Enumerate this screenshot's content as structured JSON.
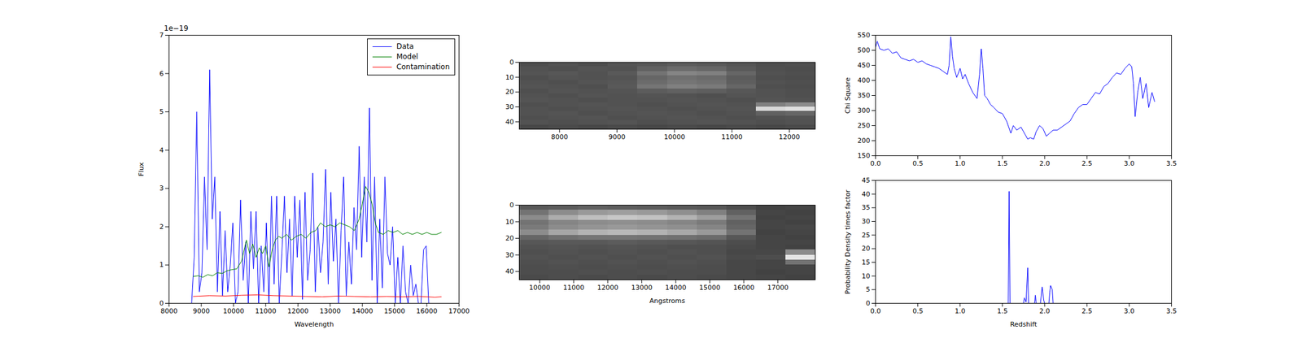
{
  "chart_data": [
    {
      "type": "line",
      "xlabel": "Wavelength",
      "ylabel": "Flux",
      "xlim": [
        8000,
        17000
      ],
      "xticks": [
        8000,
        9000,
        10000,
        11000,
        12000,
        13000,
        14000,
        15000,
        16000,
        17000
      ],
      "ylim": [
        0,
        7
      ],
      "yticks": [
        0,
        1,
        2,
        3,
        4,
        5,
        6,
        7
      ],
      "annotations": [
        {
          "text": "1e−19"
        }
      ],
      "legend": "upper right",
      "series": [
        {
          "name": "Data",
          "color": "#0000ff",
          "x": [
            8700,
            8780,
            8860,
            8940,
            9020,
            9100,
            9180,
            9260,
            9340,
            9420,
            9500,
            9580,
            9660,
            9740,
            9820,
            9900,
            9980,
            10060,
            10140,
            10220,
            10300,
            10380,
            10460,
            10540,
            10620,
            10700,
            10780,
            10860,
            10940,
            11020,
            11100,
            11180,
            11260,
            11340,
            11420,
            11500,
            11580,
            11660,
            11740,
            11820,
            11900,
            11980,
            12060,
            12140,
            12220,
            12300,
            12380,
            12460,
            12540,
            12620,
            12700,
            12780,
            12860,
            12940,
            13020,
            13100,
            13180,
            13260,
            13340,
            13420,
            13500,
            13580,
            13660,
            13740,
            13820,
            13900,
            13980,
            14060,
            14140,
            14220,
            14300,
            14380,
            14460,
            14540,
            14620,
            14700,
            14780,
            14860,
            14940,
            15020,
            15100,
            15180,
            15260,
            15340,
            15420,
            15500,
            15580,
            15660,
            15740,
            15820,
            15900,
            15980,
            16060,
            16140,
            16220,
            16300,
            16380,
            16460
          ],
          "values": [
            0,
            1.2,
            5.0,
            0.3,
            0.8,
            3.3,
            1.4,
            6.1,
            2.2,
            3.3,
            0.3,
            2.4,
            0.2,
            1.9,
            0.3,
            1.0,
            2.1,
            0.0,
            0.3,
            2.7,
            0.6,
            1.6,
            0.0,
            2.4,
            0.9,
            2.4,
            0.0,
            1.5,
            0.3,
            2.1,
            0.0,
            2.8,
            0.5,
            2.8,
            0.0,
            1.3,
            2.8,
            0.8,
            2.2,
            0.2,
            2.8,
            1.2,
            2.7,
            0.1,
            2.9,
            0.6,
            1.4,
            3.4,
            0.3,
            2.0,
            0.8,
            1.6,
            3.5,
            0.5,
            2.9,
            1.1,
            2.2,
            0.0,
            1.9,
            3.3,
            0.2,
            1.6,
            0.5,
            2.5,
            1.4,
            4.1,
            1.2,
            3.3,
            1.6,
            5.1,
            0.6,
            3.3,
            0.0,
            2.2,
            0.4,
            3.3,
            1.3,
            1.0,
            2.0,
            0.0,
            1.2,
            0.0,
            1.5,
            0.3,
            0.0,
            1.0,
            0.2,
            0.5,
            0.0,
            0.0,
            1.4,
            1.5,
            0.0,
            0.0,
            0.0,
            0.0,
            0.0,
            0.0
          ]
        },
        {
          "name": "Model",
          "color": "#008000",
          "x": [
            8750,
            8900,
            9050,
            9200,
            9350,
            9500,
            9650,
            9800,
            9950,
            10100,
            10250,
            10400,
            10500,
            10600,
            10700,
            10800,
            10900,
            11000,
            11100,
            11200,
            11300,
            11400,
            11500,
            11650,
            11800,
            11950,
            12100,
            12250,
            12400,
            12550,
            12700,
            12850,
            13000,
            13150,
            13300,
            13450,
            13600,
            13750,
            13900,
            14000,
            14100,
            14200,
            14300,
            14400,
            14500,
            14650,
            14800,
            14950,
            15100,
            15250,
            15400,
            15550,
            15700,
            15850,
            16000,
            16150,
            16300,
            16450
          ],
          "values": [
            0.7,
            0.72,
            0.68,
            0.75,
            0.72,
            0.8,
            0.78,
            0.85,
            0.88,
            0.9,
            1.1,
            1.65,
            1.3,
            1.55,
            1.2,
            1.45,
            1.3,
            1.5,
            0.95,
            1.4,
            1.65,
            1.75,
            1.7,
            1.8,
            1.65,
            1.75,
            1.8,
            1.7,
            1.85,
            1.9,
            2.1,
            2.0,
            2.05,
            2.0,
            2.1,
            2.05,
            2.0,
            1.9,
            2.2,
            2.6,
            3.05,
            2.9,
            2.6,
            2.1,
            1.85,
            1.8,
            1.9,
            1.85,
            1.9,
            1.8,
            1.85,
            1.8,
            1.85,
            1.8,
            1.85,
            1.8,
            1.8,
            1.85
          ]
        },
        {
          "name": "Contamination",
          "color": "#ff0000",
          "x": [
            8750,
            9250,
            9750,
            10250,
            10750,
            11250,
            11750,
            12250,
            12750,
            13250,
            13750,
            14250,
            14750,
            15250,
            15750,
            16250,
            16450
          ],
          "values": [
            0.18,
            0.2,
            0.19,
            0.21,
            0.22,
            0.2,
            0.19,
            0.18,
            0.17,
            0.19,
            0.18,
            0.17,
            0.18,
            0.17,
            0.18,
            0.16,
            0.17
          ]
        }
      ]
    },
    {
      "type": "heatmap",
      "xlim": [
        7300,
        12450
      ],
      "xticks": [
        8000,
        9000,
        10000,
        11000,
        12000
      ],
      "ylim": [
        45,
        0
      ],
      "yticks": [
        0,
        10,
        20,
        30,
        40
      ],
      "zlim": [
        0,
        1
      ],
      "xbins": [
        7300,
        7815,
        8330,
        8845,
        9360,
        9875,
        10390,
        10905,
        11420,
        11935,
        12450
      ],
      "ybins": [
        0,
        3,
        6,
        9,
        12,
        15,
        18,
        21,
        24,
        27,
        30,
        33,
        36,
        39,
        42,
        45
      ],
      "cells": [
        [
          0.3,
          0.32,
          0.3,
          0.33,
          0.34,
          0.36,
          0.35,
          0.33,
          0.3,
          0.31
        ],
        [
          0.32,
          0.31,
          0.33,
          0.32,
          0.38,
          0.42,
          0.4,
          0.35,
          0.31,
          0.3
        ],
        [
          0.33,
          0.34,
          0.32,
          0.35,
          0.45,
          0.52,
          0.5,
          0.4,
          0.32,
          0.31
        ],
        [
          0.31,
          0.33,
          0.32,
          0.33,
          0.4,
          0.44,
          0.42,
          0.36,
          0.31,
          0.3
        ],
        [
          0.32,
          0.31,
          0.33,
          0.34,
          0.42,
          0.46,
          0.44,
          0.37,
          0.32,
          0.31
        ],
        [
          0.33,
          0.32,
          0.31,
          0.35,
          0.46,
          0.5,
          0.48,
          0.4,
          0.31,
          0.3
        ],
        [
          0.31,
          0.33,
          0.32,
          0.33,
          0.36,
          0.38,
          0.37,
          0.34,
          0.32,
          0.31
        ],
        [
          0.32,
          0.31,
          0.33,
          0.32,
          0.33,
          0.32,
          0.31,
          0.33,
          0.32,
          0.31
        ],
        [
          0.33,
          0.32,
          0.31,
          0.32,
          0.32,
          0.33,
          0.32,
          0.31,
          0.33,
          0.32
        ],
        [
          0.31,
          0.32,
          0.33,
          0.32,
          0.31,
          0.32,
          0.33,
          0.32,
          0.5,
          0.55
        ],
        [
          0.32,
          0.31,
          0.32,
          0.33,
          0.32,
          0.31,
          0.32,
          0.33,
          0.85,
          0.88
        ],
        [
          0.32,
          0.33,
          0.31,
          0.32,
          0.33,
          0.32,
          0.31,
          0.32,
          0.38,
          0.4
        ],
        [
          0.31,
          0.32,
          0.33,
          0.31,
          0.32,
          0.33,
          0.32,
          0.31,
          0.32,
          0.33
        ],
        [
          0.32,
          0.31,
          0.32,
          0.33,
          0.31,
          0.32,
          0.33,
          0.32,
          0.31,
          0.32
        ],
        [
          0.28,
          0.29,
          0.28,
          0.29,
          0.28,
          0.29,
          0.28,
          0.29,
          0.28,
          0.29
        ]
      ]
    },
    {
      "type": "heatmap",
      "xlabel": "Angstroms",
      "xlim": [
        9400,
        18100
      ],
      "xticks": [
        10000,
        11000,
        12000,
        13000,
        14000,
        15000,
        16000,
        17000
      ],
      "ylim": [
        45,
        0
      ],
      "yticks": [
        0,
        10,
        20,
        30,
        40
      ],
      "zlim": [
        0,
        1
      ],
      "xbins": [
        9400,
        10270,
        11140,
        12010,
        12880,
        13750,
        14620,
        15490,
        16360,
        17230,
        18100
      ],
      "ybins": [
        0,
        3,
        6,
        9,
        12,
        15,
        18,
        21,
        24,
        27,
        30,
        33,
        36,
        39,
        42,
        45
      ],
      "cells": [
        [
          0.35,
          0.36,
          0.38,
          0.37,
          0.36,
          0.35,
          0.34,
          0.3,
          0.26,
          0.27
        ],
        [
          0.45,
          0.55,
          0.6,
          0.62,
          0.6,
          0.56,
          0.5,
          0.38,
          0.27,
          0.26
        ],
        [
          0.55,
          0.68,
          0.75,
          0.78,
          0.76,
          0.7,
          0.62,
          0.45,
          0.26,
          0.27
        ],
        [
          0.45,
          0.52,
          0.55,
          0.56,
          0.55,
          0.52,
          0.48,
          0.38,
          0.27,
          0.26
        ],
        [
          0.48,
          0.55,
          0.58,
          0.6,
          0.58,
          0.56,
          0.52,
          0.4,
          0.27,
          0.28
        ],
        [
          0.55,
          0.65,
          0.7,
          0.72,
          0.7,
          0.66,
          0.6,
          0.45,
          0.26,
          0.27
        ],
        [
          0.4,
          0.44,
          0.46,
          0.46,
          0.45,
          0.44,
          0.42,
          0.34,
          0.27,
          0.26
        ],
        [
          0.34,
          0.35,
          0.35,
          0.36,
          0.35,
          0.34,
          0.33,
          0.3,
          0.27,
          0.27
        ],
        [
          0.32,
          0.33,
          0.32,
          0.33,
          0.32,
          0.31,
          0.31,
          0.29,
          0.27,
          0.26
        ],
        [
          0.31,
          0.32,
          0.31,
          0.32,
          0.31,
          0.32,
          0.31,
          0.28,
          0.28,
          0.55
        ],
        [
          0.32,
          0.31,
          0.32,
          0.31,
          0.32,
          0.31,
          0.32,
          0.29,
          0.3,
          0.9
        ],
        [
          0.31,
          0.32,
          0.31,
          0.32,
          0.31,
          0.32,
          0.31,
          0.28,
          0.27,
          0.45
        ],
        [
          0.3,
          0.31,
          0.3,
          0.31,
          0.3,
          0.31,
          0.3,
          0.28,
          0.27,
          0.27
        ],
        [
          0.3,
          0.3,
          0.31,
          0.3,
          0.31,
          0.3,
          0.3,
          0.28,
          0.26,
          0.27
        ],
        [
          0.29,
          0.3,
          0.29,
          0.3,
          0.29,
          0.3,
          0.29,
          0.28,
          0.27,
          0.26
        ]
      ]
    },
    {
      "type": "line",
      "ylabel": "Chi Square",
      "xlim": [
        0,
        3.5
      ],
      "xticks": [
        {
          "value": 0,
          "label": "0.0"
        },
        0.5,
        {
          "value": 1,
          "label": "1.0"
        },
        1.5,
        {
          "value": 2,
          "label": "2.0"
        },
        2.5,
        {
          "value": 3,
          "label": "3.0"
        },
        3.5
      ],
      "ylim": [
        150,
        550
      ],
      "yticks": [
        150,
        200,
        250,
        300,
        350,
        400,
        450,
        500,
        550
      ],
      "series": [
        {
          "color": "#0000ff",
          "x": [
            0,
            0.02,
            0.05,
            0.1,
            0.15,
            0.2,
            0.25,
            0.3,
            0.35,
            0.4,
            0.45,
            0.5,
            0.55,
            0.6,
            0.65,
            0.7,
            0.75,
            0.8,
            0.85,
            0.87,
            0.89,
            0.91,
            0.93,
            0.96,
            1.0,
            1.03,
            1.06,
            1.1,
            1.15,
            1.2,
            1.23,
            1.25,
            1.27,
            1.29,
            1.32,
            1.36,
            1.4,
            1.45,
            1.5,
            1.55,
            1.6,
            1.63,
            1.67,
            1.72,
            1.76,
            1.8,
            1.83,
            1.87,
            1.9,
            1.94,
            1.98,
            2.02,
            2.06,
            2.1,
            2.15,
            2.2,
            2.25,
            2.3,
            2.35,
            2.4,
            2.45,
            2.5,
            2.55,
            2.6,
            2.65,
            2.7,
            2.75,
            2.8,
            2.85,
            2.9,
            2.95,
            3.0,
            3.03,
            3.05,
            3.07,
            3.1,
            3.13,
            3.16,
            3.2,
            3.23,
            3.27,
            3.3
          ],
          "values": [
            510,
            530,
            505,
            500,
            505,
            490,
            495,
            475,
            470,
            465,
            470,
            460,
            465,
            455,
            450,
            445,
            440,
            430,
            420,
            450,
            545,
            480,
            440,
            410,
            440,
            405,
            420,
            390,
            360,
            340,
            420,
            505,
            440,
            350,
            340,
            320,
            310,
            295,
            290,
            265,
            225,
            250,
            235,
            245,
            225,
            205,
            210,
            205,
            230,
            250,
            240,
            215,
            225,
            235,
            235,
            245,
            255,
            265,
            290,
            310,
            320,
            320,
            340,
            360,
            355,
            380,
            390,
            410,
            425,
            420,
            440,
            455,
            445,
            390,
            280,
            360,
            410,
            340,
            390,
            310,
            360,
            330
          ]
        }
      ]
    },
    {
      "type": "line",
      "xlabel": "Redshift",
      "ylabel": "Probability Density times factor",
      "xlim": [
        0,
        3.5
      ],
      "xticks": [
        {
          "value": 0,
          "label": "0.0"
        },
        0.5,
        {
          "value": 1,
          "label": "1.0"
        },
        1.5,
        {
          "value": 2,
          "label": "2.0"
        },
        2.5,
        {
          "value": 3,
          "label": "3.0"
        },
        3.5
      ],
      "ylim": [
        0,
        45
      ],
      "yticks": [
        0,
        5,
        10,
        15,
        20,
        25,
        30,
        35,
        40,
        45
      ],
      "series": [
        {
          "color": "#0000ff",
          "x": [
            0,
            1.55,
            1.57,
            1.58,
            1.59,
            1.75,
            1.76,
            1.78,
            1.8,
            1.81,
            1.88,
            1.89,
            1.9,
            1.95,
            1.97,
            1.99,
            2.0,
            2.05,
            2.06,
            2.07,
            2.09,
            2.1,
            3.3
          ],
          "values": [
            0,
            0,
            0,
            41,
            0,
            0,
            2,
            0.5,
            13,
            0,
            0,
            3,
            0,
            0,
            6,
            1,
            0,
            0,
            4,
            6.5,
            5,
            0,
            0
          ]
        }
      ]
    }
  ]
}
